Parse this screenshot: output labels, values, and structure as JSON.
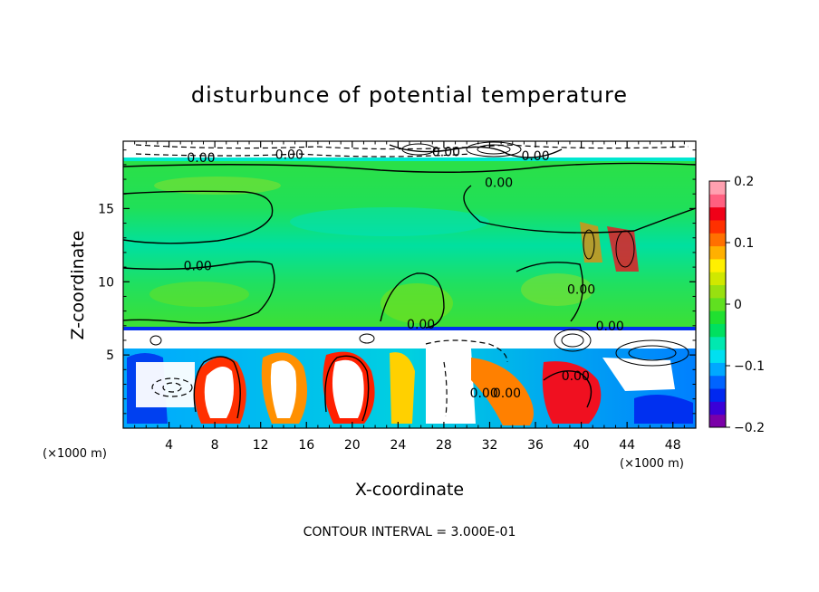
{
  "chart_data": {
    "type": "heatmap",
    "title": "disturbunce of potential temperature",
    "xlabel": "X-coordinate",
    "ylabel": "Z-coordinate",
    "x_unit": "(×1000 m)",
    "y_unit": "(×1000 m)",
    "xlim": [
      0,
      50
    ],
    "ylim": [
      0,
      19.6
    ],
    "x_ticks": [
      4,
      8,
      12,
      16,
      20,
      24,
      28,
      32,
      36,
      40,
      44,
      48
    ],
    "y_ticks": [
      5,
      10,
      15
    ],
    "colorbar": {
      "range": [
        -0.2,
        0.2
      ],
      "ticks": [
        0.2,
        0.1,
        0,
        -0.1,
        -0.2
      ],
      "tick_labels": [
        "0.2",
        "0.1",
        "0",
        "−0.1",
        "−0.2"
      ],
      "colors": [
        "#7a00a8",
        "#3a00d8",
        "#0028f0",
        "#0064ff",
        "#00a8ff",
        "#00e0f0",
        "#00e8b0",
        "#00e060",
        "#20e030",
        "#60e020",
        "#98e010",
        "#d0e800",
        "#fff000",
        "#ffb000",
        "#ff7000",
        "#ff3000",
        "#f00018",
        "#ff6080",
        "#ffa0b0"
      ]
    },
    "contour_labels": [
      {
        "text": "0.00",
        "x": 6.8,
        "z": 18.5
      },
      {
        "text": "0.00",
        "x": 14.5,
        "z": 18.7
      },
      {
        "text": "0.00",
        "x": 36.0,
        "z": 18.6
      },
      {
        "text": "0.00",
        "x": 28.2,
        "z": 18.9
      },
      {
        "text": "0.00",
        "x": 32.8,
        "z": 16.8
      },
      {
        "text": "0.00",
        "x": 6.5,
        "z": 11.1
      },
      {
        "text": "0.00",
        "x": 26.0,
        "z": 7.1
      },
      {
        "text": "0.00",
        "x": 40.0,
        "z": 9.5
      },
      {
        "text": "0.00",
        "x": 42.5,
        "z": 7.0
      },
      {
        "text": "0.00",
        "x": 39.5,
        "z": 3.6
      },
      {
        "text": "0.00",
        "x": 31.5,
        "z": 2.4
      },
      {
        "text": "0.00",
        "x": 33.5,
        "z": 2.4
      }
    ],
    "footer": "CONTOUR INTERVAL = 3.000E-01"
  }
}
